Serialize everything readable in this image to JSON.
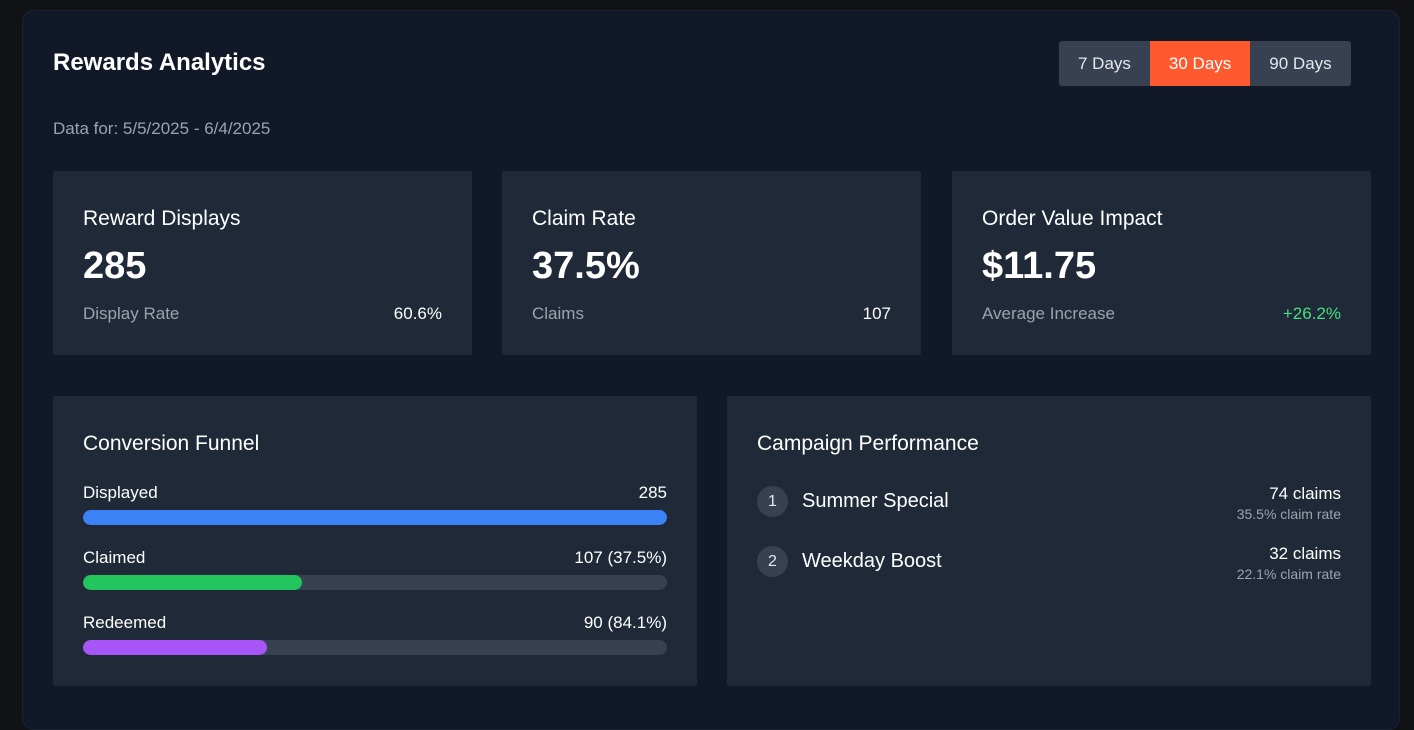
{
  "header": {
    "title": "Rewards Analytics",
    "date_range": "Data for: 5/5/2025 - 6/4/2025",
    "ranges": [
      {
        "label": "7 Days",
        "active": false
      },
      {
        "label": "30 Days",
        "active": true
      },
      {
        "label": "90 Days",
        "active": false
      }
    ]
  },
  "stats": [
    {
      "title": "Reward Displays",
      "value": "285",
      "sub_label": "Display Rate",
      "sub_value": "60.6%"
    },
    {
      "title": "Claim Rate",
      "value": "37.5%",
      "sub_label": "Claims",
      "sub_value": "107"
    },
    {
      "title": "Order Value Impact",
      "value": "$11.75",
      "sub_label": "Average Increase",
      "sub_value": "+26.2%"
    }
  ],
  "funnel": {
    "title": "Conversion Funnel",
    "rows": [
      {
        "label": "Displayed",
        "value": "285",
        "fill": 1.0,
        "color": "#3b82f6"
      },
      {
        "label": "Claimed",
        "value": "107 (37.5%)",
        "fill": 0.375,
        "color": "#22c55e"
      },
      {
        "label": "Redeemed",
        "value": "90 (84.1%)",
        "fill": 0.315,
        "color": "#a855f7"
      }
    ]
  },
  "campaigns": {
    "title": "Campaign Performance",
    "items": [
      {
        "rank": "1",
        "name": "Summer Special",
        "claims": "74 claims",
        "rate": "35.5% claim rate"
      },
      {
        "rank": "2",
        "name": "Weekday Boost",
        "claims": "32 claims",
        "rate": "22.1% claim rate"
      }
    ]
  },
  "colors": {
    "accent": "#ff5a2f",
    "positive": "#4ade80",
    "card": "#1f2937",
    "panel": "#111827"
  }
}
